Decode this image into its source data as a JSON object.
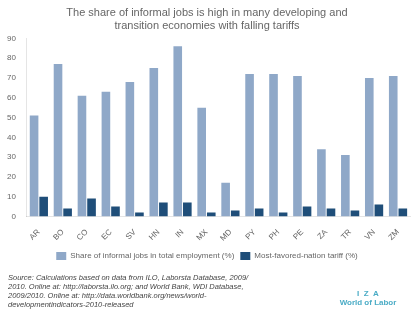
{
  "chart_data": {
    "type": "bar",
    "title": "The share of informal jobs is high in many developing and\ntransition economies with falling tariffs",
    "categories": [
      "AR",
      "BO",
      "CO",
      "EC",
      "SV",
      "HN",
      "IN",
      "MX",
      "MD",
      "PY",
      "PH",
      "PE",
      "ZA",
      "TR",
      "VN",
      "ZM"
    ],
    "series": [
      {
        "name": "Share of informal jobs in total employment (%)",
        "color": "#8FA8C8",
        "values": [
          51,
          77,
          61,
          63,
          68,
          75,
          86,
          55,
          17,
          72,
          72,
          71,
          34,
          31,
          70,
          71
        ]
      },
      {
        "name": "Most-favored-nation tariff (%)",
        "color": "#1F4E79",
        "values": [
          10,
          4,
          9,
          5,
          2,
          7,
          7,
          2,
          3,
          4,
          2,
          5,
          4,
          3,
          6,
          4
        ]
      }
    ],
    "ylim": [
      0,
      90
    ],
    "yticks": [
      0,
      10,
      20,
      30,
      40,
      50,
      60,
      70,
      80,
      90
    ],
    "grid": false,
    "legend": "bottom",
    "annotations": [
      "Source: Calculations based on data from ILO, Laborsta Database, 2009/\n2010. Online at: http://laborsta.ilo.org; and World Bank, WDI Database,\n2009/2010. Online at: http://data.worldbank.org/news/world-\ndevelopmentindicators-2010-released",
      "I  Z  A\nWorld of Labor"
    ]
  }
}
